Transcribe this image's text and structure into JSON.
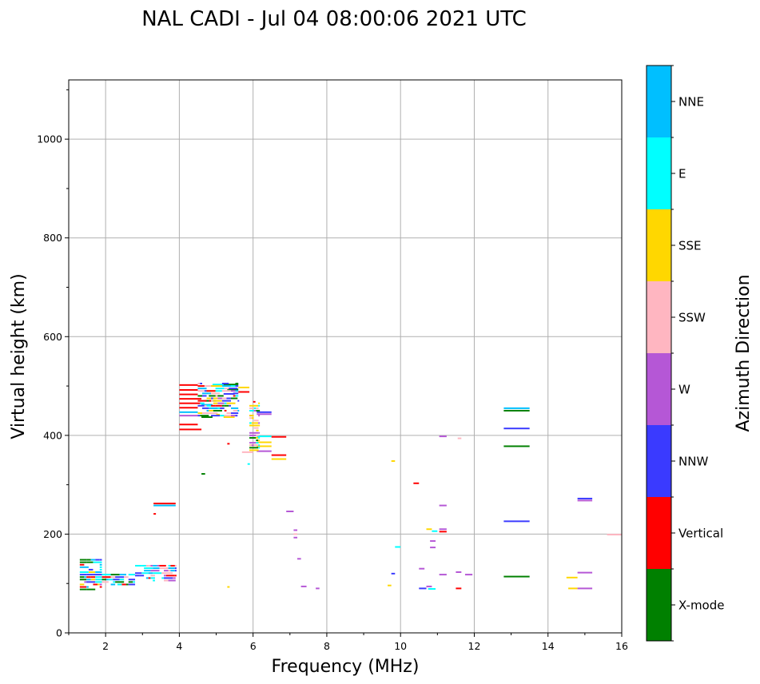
{
  "chart_data": {
    "type": "scatter",
    "title": "NAL CADI - Jul 04 08:00:06 2021 UTC",
    "xlabel": "Frequency (MHz)",
    "ylabel": "Virtual height (km)",
    "xlim": [
      1.0,
      16.0
    ],
    "ylim": [
      0,
      1120
    ],
    "xticks": [
      2,
      4,
      6,
      8,
      10,
      12,
      14,
      16
    ],
    "yticks": [
      0,
      200,
      400,
      600,
      800,
      1000
    ],
    "grid": true,
    "colorbar": {
      "label": "Azimuth Direction",
      "categories": [
        {
          "name": "X-mode",
          "color": "#008000"
        },
        {
          "name": "Vertical",
          "color": "#ff0000"
        },
        {
          "name": "NNW",
          "color": "#3a3aff"
        },
        {
          "name": "W",
          "color": "#b557d6"
        },
        {
          "name": "SSW",
          "color": "#ffb6c1"
        },
        {
          "name": "SSE",
          "color": "#ffd700"
        },
        {
          "name": "E",
          "color": "#00ffff"
        },
        {
          "name": "NNE",
          "color": "#00bfff"
        }
      ]
    },
    "segments": [
      {
        "x0": 3.3,
        "x1": 3.9,
        "y": 262,
        "c": "Vertical"
      },
      {
        "x0": 3.3,
        "x1": 3.9,
        "y": 258,
        "c": "NNE"
      },
      {
        "x0": 3.3,
        "x1": 3.3,
        "y": 241,
        "c": "Vertical"
      },
      {
        "x0": 4.0,
        "x1": 4.5,
        "y": 502,
        "c": "Vertical"
      },
      {
        "x0": 4.0,
        "x1": 4.5,
        "y": 492,
        "c": "Vertical"
      },
      {
        "x0": 4.0,
        "x1": 4.5,
        "y": 483,
        "c": "Vertical"
      },
      {
        "x0": 4.0,
        "x1": 4.6,
        "y": 474,
        "c": "Vertical"
      },
      {
        "x0": 4.0,
        "x1": 4.6,
        "y": 465,
        "c": "Vertical"
      },
      {
        "x0": 4.0,
        "x1": 4.5,
        "y": 456,
        "c": "Vertical"
      },
      {
        "x0": 4.0,
        "x1": 4.5,
        "y": 447,
        "c": "NNE"
      },
      {
        "x0": 4.0,
        "x1": 4.5,
        "y": 440,
        "c": "W"
      },
      {
        "x0": 4.0,
        "x1": 4.5,
        "y": 422,
        "c": "Vertical"
      },
      {
        "x0": 4.0,
        "x1": 4.6,
        "y": 412,
        "c": "Vertical"
      },
      {
        "x0": 4.6,
        "x1": 4.9,
        "y": 500,
        "c": "SSW"
      },
      {
        "x0": 4.7,
        "x1": 5.0,
        "y": 490,
        "c": "SSE"
      },
      {
        "x0": 4.8,
        "x1": 5.2,
        "y": 480,
        "c": "X-mode"
      },
      {
        "x0": 4.7,
        "x1": 5.0,
        "y": 470,
        "c": "X-mode"
      },
      {
        "x0": 4.6,
        "x1": 4.9,
        "y": 462,
        "c": "NNE"
      },
      {
        "x0": 4.9,
        "x1": 5.2,
        "y": 503,
        "c": "E"
      },
      {
        "x0": 5.2,
        "x1": 5.6,
        "y": 503,
        "c": "X-mode"
      },
      {
        "x0": 5.3,
        "x1": 5.6,
        "y": 493,
        "c": "X-mode"
      },
      {
        "x0": 5.2,
        "x1": 5.5,
        "y": 484,
        "c": "NNW"
      },
      {
        "x0": 5.6,
        "x1": 5.9,
        "y": 497,
        "c": "SSE"
      },
      {
        "x0": 5.6,
        "x1": 5.9,
        "y": 488,
        "c": "Vertical"
      },
      {
        "x0": 4.8,
        "x1": 5.1,
        "y": 455,
        "c": "E"
      },
      {
        "x0": 4.6,
        "x1": 4.9,
        "y": 437,
        "c": "X-mode"
      },
      {
        "x0": 4.6,
        "x1": 4.7,
        "y": 322,
        "c": "X-mode"
      },
      {
        "x0": 5.2,
        "x1": 5.5,
        "y": 437,
        "c": "SSE"
      },
      {
        "x0": 5.0,
        "x1": 5.1,
        "y": 442,
        "c": "SSE"
      },
      {
        "x0": 6.1,
        "x1": 6.5,
        "y": 447,
        "c": "NNW"
      },
      {
        "x0": 6.1,
        "x1": 6.5,
        "y": 443,
        "c": "W"
      },
      {
        "x0": 5.9,
        "x1": 6.0,
        "y": 440,
        "c": "W"
      },
      {
        "x0": 6.0,
        "x1": 6.05,
        "y": 468,
        "c": "Vertical"
      },
      {
        "x0": 6.1,
        "x1": 6.5,
        "y": 398,
        "c": "E"
      },
      {
        "x0": 6.5,
        "x1": 6.9,
        "y": 397,
        "c": "Vertical"
      },
      {
        "x0": 6.1,
        "x1": 6.5,
        "y": 386,
        "c": "SSE"
      },
      {
        "x0": 6.1,
        "x1": 6.5,
        "y": 378,
        "c": "SSE"
      },
      {
        "x0": 5.7,
        "x1": 6.0,
        "y": 366,
        "c": "SSW"
      },
      {
        "x0": 5.9,
        "x1": 6.1,
        "y": 380,
        "c": "SSE"
      },
      {
        "x0": 6.1,
        "x1": 6.5,
        "y": 368,
        "c": "W"
      },
      {
        "x0": 6.5,
        "x1": 6.9,
        "y": 360,
        "c": "Vertical"
      },
      {
        "x0": 6.5,
        "x1": 6.9,
        "y": 352,
        "c": "SSE"
      },
      {
        "x0": 5.3,
        "x1": 5.35,
        "y": 383,
        "c": "Vertical"
      },
      {
        "x0": 5.85,
        "x1": 5.9,
        "y": 342,
        "c": "E"
      },
      {
        "x0": 6.9,
        "x1": 7.1,
        "y": 246,
        "c": "W"
      },
      {
        "x0": 7.1,
        "x1": 7.2,
        "y": 208,
        "c": "W"
      },
      {
        "x0": 7.1,
        "x1": 7.2,
        "y": 200,
        "c": "SSW"
      },
      {
        "x0": 7.1,
        "x1": 7.2,
        "y": 193,
        "c": "W"
      },
      {
        "x0": 7.2,
        "x1": 7.3,
        "y": 150,
        "c": "W"
      },
      {
        "x0": 7.3,
        "x1": 7.45,
        "y": 94,
        "c": "W"
      },
      {
        "x0": 7.7,
        "x1": 7.8,
        "y": 90,
        "c": "W"
      },
      {
        "x0": 5.3,
        "x1": 5.35,
        "y": 93,
        "c": "SSE"
      },
      {
        "x0": 9.75,
        "x1": 9.85,
        "y": 348,
        "c": "SSE"
      },
      {
        "x0": 10.35,
        "x1": 10.5,
        "y": 303,
        "c": "Vertical"
      },
      {
        "x0": 9.85,
        "x1": 10.0,
        "y": 174,
        "c": "E"
      },
      {
        "x0": 9.75,
        "x1": 9.85,
        "y": 120,
        "c": "NNW"
      },
      {
        "x0": 9.65,
        "x1": 9.75,
        "y": 96,
        "c": "SSE"
      },
      {
        "x0": 10.7,
        "x1": 10.85,
        "y": 210,
        "c": "SSE"
      },
      {
        "x0": 10.85,
        "x1": 11.0,
        "y": 206,
        "c": "E"
      },
      {
        "x0": 11.05,
        "x1": 11.25,
        "y": 210,
        "c": "W"
      },
      {
        "x0": 11.05,
        "x1": 11.25,
        "y": 205,
        "c": "Vertical"
      },
      {
        "x0": 10.8,
        "x1": 10.95,
        "y": 186,
        "c": "W"
      },
      {
        "x0": 10.8,
        "x1": 10.95,
        "y": 173,
        "c": "W"
      },
      {
        "x0": 11.05,
        "x1": 11.25,
        "y": 258,
        "c": "W"
      },
      {
        "x0": 11.05,
        "x1": 11.25,
        "y": 398,
        "c": "W"
      },
      {
        "x0": 11.55,
        "x1": 11.65,
        "y": 394,
        "c": "SSW"
      },
      {
        "x0": 10.5,
        "x1": 10.65,
        "y": 130,
        "c": "W"
      },
      {
        "x0": 11.05,
        "x1": 11.25,
        "y": 118,
        "c": "W"
      },
      {
        "x0": 11.5,
        "x1": 11.65,
        "y": 123,
        "c": "W"
      },
      {
        "x0": 11.75,
        "x1": 11.95,
        "y": 118,
        "c": "W"
      },
      {
        "x0": 10.5,
        "x1": 10.7,
        "y": 90,
        "c": "NNW"
      },
      {
        "x0": 10.7,
        "x1": 10.85,
        "y": 94,
        "c": "W"
      },
      {
        "x0": 10.75,
        "x1": 10.95,
        "y": 89,
        "c": "E"
      },
      {
        "x0": 11.5,
        "x1": 11.65,
        "y": 90,
        "c": "Vertical"
      },
      {
        "x0": 12.8,
        "x1": 13.5,
        "y": 455,
        "c": "NNE"
      },
      {
        "x0": 12.8,
        "x1": 13.5,
        "y": 450,
        "c": "X-mode"
      },
      {
        "x0": 12.8,
        "x1": 13.5,
        "y": 414,
        "c": "NNW"
      },
      {
        "x0": 12.8,
        "x1": 13.5,
        "y": 378,
        "c": "X-mode"
      },
      {
        "x0": 12.8,
        "x1": 13.5,
        "y": 226,
        "c": "NNW"
      },
      {
        "x0": 12.8,
        "x1": 13.5,
        "y": 114,
        "c": "X-mode"
      },
      {
        "x0": 14.8,
        "x1": 15.2,
        "y": 272,
        "c": "NNW"
      },
      {
        "x0": 14.8,
        "x1": 15.2,
        "y": 268,
        "c": "W"
      },
      {
        "x0": 14.5,
        "x1": 14.8,
        "y": 112,
        "c": "SSE"
      },
      {
        "x0": 14.8,
        "x1": 15.2,
        "y": 122,
        "c": "W"
      },
      {
        "x0": 14.55,
        "x1": 14.8,
        "y": 90,
        "c": "SSE"
      },
      {
        "x0": 14.8,
        "x1": 15.2,
        "y": 90,
        "c": "W"
      },
      {
        "x0": 15.6,
        "x1": 16.0,
        "y": 199,
        "c": "SSW"
      }
    ],
    "clusters": [
      {
        "x0": 1.3,
        "x1": 1.9,
        "y0": 88,
        "y1": 150,
        "colors": [
          "E",
          "NNE",
          "SSE",
          "NNW",
          "X-mode",
          "Vertical",
          "W"
        ]
      },
      {
        "x0": 1.9,
        "x1": 2.8,
        "y0": 98,
        "y1": 118,
        "colors": [
          "Vertical",
          "W",
          "NNW",
          "NNE",
          "E",
          "X-mode",
          "SSW"
        ]
      },
      {
        "x0": 2.8,
        "x1": 3.9,
        "y0": 106,
        "y1": 138,
        "colors": [
          "NNE",
          "E",
          "Vertical",
          "NNW",
          "W",
          "SSW"
        ]
      },
      {
        "x0": 4.5,
        "x1": 5.6,
        "y0": 440,
        "y1": 505,
        "colors": [
          "X-mode",
          "SSE",
          "E",
          "SSW",
          "W",
          "NNE",
          "Vertical",
          "NNW"
        ]
      },
      {
        "x0": 5.9,
        "x1": 6.15,
        "y0": 370,
        "y1": 470,
        "colors": [
          "SSE",
          "E",
          "W",
          "SSW",
          "X-mode"
        ]
      }
    ]
  }
}
